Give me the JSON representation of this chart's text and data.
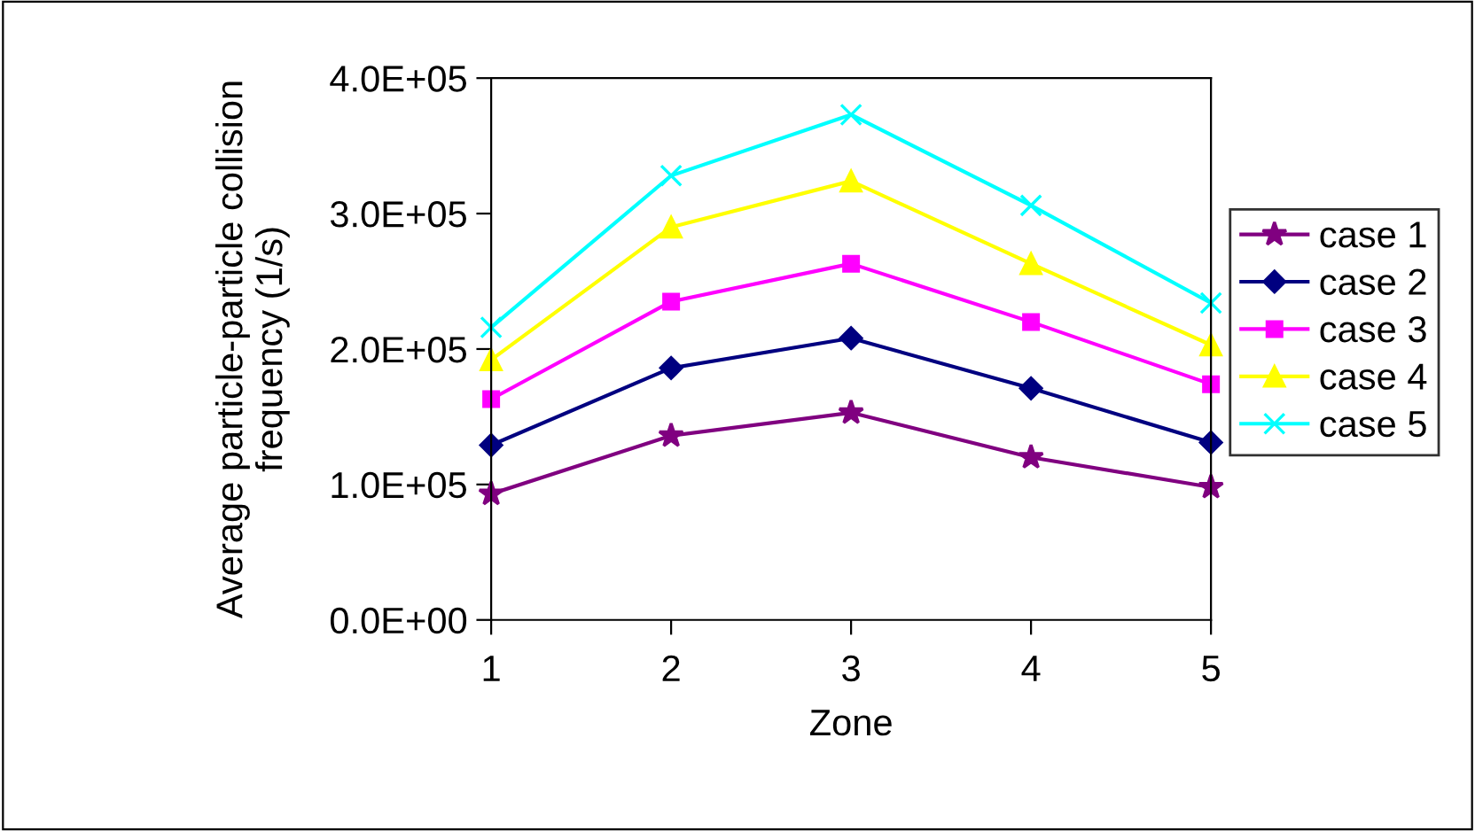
{
  "chart_data": {
    "type": "line",
    "xlabel": "Zone",
    "ylabel": "Average particle-particle collision frequency (1/s)",
    "categories": [
      "1",
      "2",
      "3",
      "4",
      "5"
    ],
    "ylim": [
      0,
      400000
    ],
    "yticks": [
      {
        "value": 0,
        "label": "0.0E+00"
      },
      {
        "value": 100000,
        "label": "1.0E+05"
      },
      {
        "value": 200000,
        "label": "2.0E+05"
      },
      {
        "value": 300000,
        "label": "3.0E+05"
      },
      {
        "value": 400000,
        "label": "4.0E+05"
      }
    ],
    "grid": false,
    "legend": "right",
    "series": [
      {
        "name": "case 1",
        "color": "#800080",
        "marker": "star",
        "values": [
          93000,
          136000,
          153000,
          120000,
          98000
        ]
      },
      {
        "name": "case 2",
        "color": "#000080",
        "marker": "diamond",
        "values": [
          129000,
          186000,
          208000,
          171000,
          131000
        ]
      },
      {
        "name": "case 3",
        "color": "#ff00ff",
        "marker": "square",
        "values": [
          163000,
          235000,
          263000,
          220000,
          174000
        ]
      },
      {
        "name": "case 4",
        "color": "#ffff00",
        "marker": "triangle",
        "values": [
          192000,
          290000,
          324000,
          263000,
          203000
        ]
      },
      {
        "name": "case 5",
        "color": "#00ffff",
        "marker": "cross",
        "values": [
          216000,
          328000,
          373000,
          306000,
          234000
        ]
      }
    ]
  }
}
